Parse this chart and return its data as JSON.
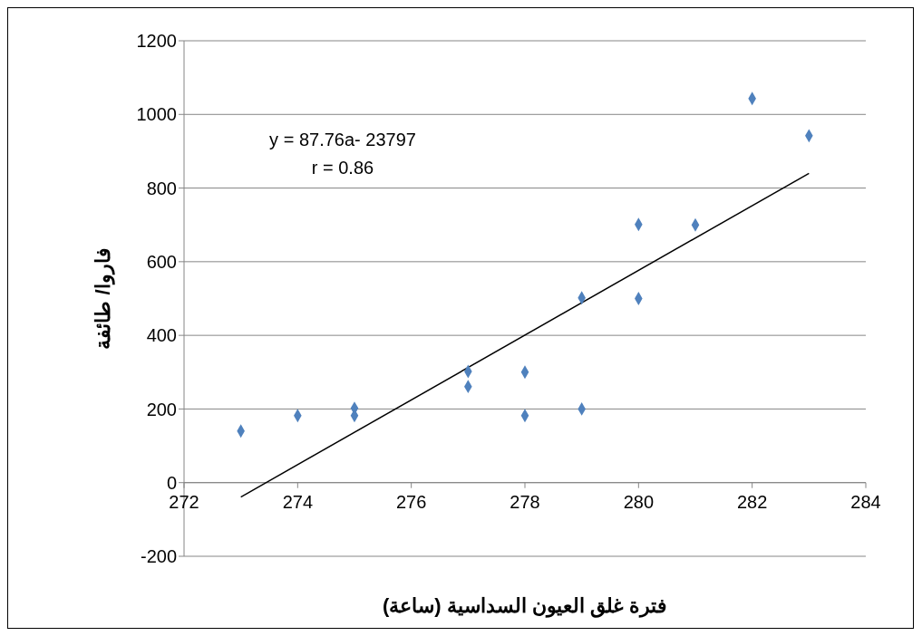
{
  "chart_data": {
    "type": "scatter",
    "xlabel": "فترة غلق العيون السداسية (ساعة)",
    "ylabel": "فاروا/ طائفة",
    "annotations": [
      "y = 87.76a- 23797",
      "r = 0.86"
    ],
    "series": [
      {
        "color": "#4f81bd",
        "marker": "diamond",
        "x": [
          273,
          274,
          275,
          275,
          277,
          277,
          278,
          278,
          279,
          279,
          280,
          280,
          281,
          282,
          283
        ],
        "values": [
          140,
          182,
          202,
          182,
          302,
          261,
          300,
          182,
          502,
          200,
          701,
          500,
          700,
          1043,
          942
        ]
      },
      {
        "type": "line",
        "color": "#000000",
        "marker": "none",
        "x": [
          273,
          283
        ],
        "values": [
          -39,
          840
        ]
      }
    ],
    "xlim": [
      272,
      284
    ],
    "xticks": [
      272,
      274,
      276,
      278,
      280,
      282,
      284
    ],
    "ylim": [
      -200,
      1200
    ],
    "yticks": [
      -200,
      0,
      200,
      400,
      600,
      800,
      1000,
      1200
    ],
    "grid": "y"
  }
}
